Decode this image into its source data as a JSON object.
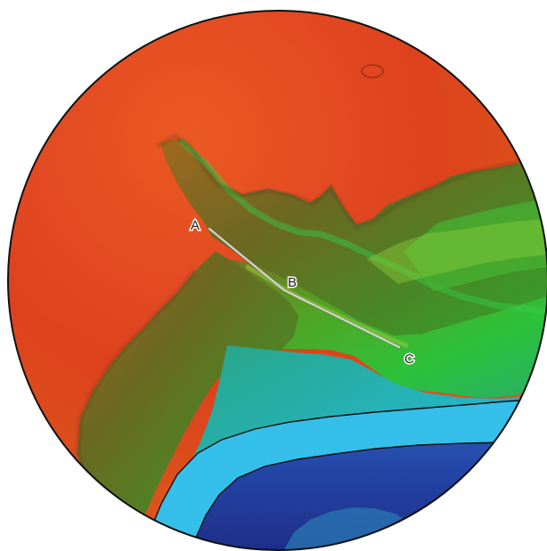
{
  "map": {
    "labels": {
      "a": "A",
      "b": "B",
      "c": "C"
    },
    "colors": {
      "upland": "#e2431f",
      "upland_light": "#ea5a22",
      "slope_orange": "#d86a1e",
      "slope_olive": "#7d6a1f",
      "slope_green": "#3f9a24",
      "bright_green": "#2fc433",
      "teal": "#2aa9a6",
      "cyan_channel": "#35c3ee",
      "deep_blue": "#2446a8",
      "navy": "#1f2f8c",
      "profile_line": "#f4f4f4",
      "outline": "#111111"
    },
    "icons": [
      "elevation-map",
      "profile-line",
      "channel-band"
    ]
  }
}
